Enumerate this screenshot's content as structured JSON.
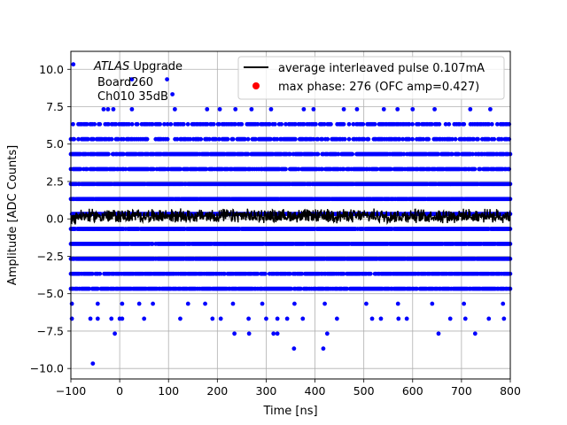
{
  "chart_data": {
    "type": "scatter",
    "title": "",
    "xlabel": "Time [ns]",
    "ylabel": "Amplitude [ADC Counts]",
    "xlim": [
      -100,
      800
    ],
    "ylim": [
      -10.7,
      11.2
    ],
    "grid": true,
    "xticks": [
      -100,
      0,
      100,
      200,
      300,
      400,
      500,
      600,
      700,
      800
    ],
    "yticks": [
      -10.0,
      -7.5,
      -5.0,
      -2.5,
      0.0,
      2.5,
      5.0,
      7.5,
      10.0
    ],
    "xtick_labels": [
      "−100",
      "0",
      "100",
      "200",
      "300",
      "400",
      "500",
      "600",
      "700",
      "800"
    ],
    "ytick_labels": [
      "−10.0",
      "−7.5",
      "−5.0",
      "−2.5",
      "0.0",
      "2.5",
      "5.0",
      "7.5",
      "10.0"
    ],
    "annotation": {
      "line1_italic": "ATLAS",
      "line1_rest": " Upgrade",
      "line2": "Board260",
      "line3": "Ch010 35dB"
    },
    "legend": {
      "placement": "upper-right",
      "entries": [
        {
          "label": "average interleaved pulse 0.107mA",
          "marker": "line",
          "color": "#000000"
        },
        {
          "label": "max phase: 276 (OFC amp=0.427)",
          "marker": "dot",
          "color": "#ff0000"
        }
      ]
    },
    "series": [
      {
        "kind": "scatter",
        "color": "#0000ff",
        "dense_levels": [
          -4.67,
          -3.67,
          -2.67,
          -1.67,
          -0.67,
          0.33,
          1.33,
          2.33,
          3.33,
          4.33,
          5.33,
          6.33
        ],
        "sparse_points": [
          [
            -95,
            10.33
          ],
          [
            25,
            9.33
          ],
          [
            97,
            9.33
          ],
          [
            108,
            8.33
          ],
          [
            -33,
            7.33
          ],
          [
            -24,
            7.33
          ],
          [
            -13,
            7.33
          ],
          [
            25,
            7.33
          ],
          [
            113,
            7.33
          ],
          [
            179,
            7.33
          ],
          [
            205,
            7.33
          ],
          [
            237,
            7.33
          ],
          [
            270,
            7.33
          ],
          [
            310,
            7.33
          ],
          [
            377,
            7.33
          ],
          [
            397,
            7.33
          ],
          [
            459,
            7.33
          ],
          [
            486,
            7.33
          ],
          [
            541,
            7.33
          ],
          [
            569,
            7.33
          ],
          [
            600,
            7.33
          ],
          [
            645,
            7.33
          ],
          [
            718,
            7.33
          ],
          [
            759,
            7.33
          ],
          [
            -98,
            -5.67
          ],
          [
            -45,
            -5.67
          ],
          [
            5,
            -5.67
          ],
          [
            40,
            -5.67
          ],
          [
            68,
            -5.67
          ],
          [
            140,
            -5.67
          ],
          [
            175,
            -5.67
          ],
          [
            232,
            -5.67
          ],
          [
            292,
            -5.67
          ],
          [
            358,
            -5.67
          ],
          [
            420,
            -5.67
          ],
          [
            505,
            -5.67
          ],
          [
            570,
            -5.67
          ],
          [
            640,
            -5.67
          ],
          [
            705,
            -5.67
          ],
          [
            785,
            -5.67
          ],
          [
            -98,
            -6.67
          ],
          [
            -60,
            -6.67
          ],
          [
            -45,
            -6.67
          ],
          [
            -17,
            -6.67
          ],
          [
            0,
            -6.67
          ],
          [
            5,
            -6.67
          ],
          [
            50,
            -6.67
          ],
          [
            124,
            -6.67
          ],
          [
            190,
            -6.67
          ],
          [
            207,
            -6.67
          ],
          [
            264,
            -6.67
          ],
          [
            300,
            -6.67
          ],
          [
            323,
            -6.67
          ],
          [
            343,
            -6.67
          ],
          [
            375,
            -6.67
          ],
          [
            445,
            -6.67
          ],
          [
            517,
            -6.67
          ],
          [
            535,
            -6.67
          ],
          [
            571,
            -6.67
          ],
          [
            588,
            -6.67
          ],
          [
            677,
            -6.67
          ],
          [
            708,
            -6.67
          ],
          [
            756,
            -6.67
          ],
          [
            787,
            -6.67
          ],
          [
            -10,
            -7.67
          ],
          [
            235,
            -7.67
          ],
          [
            265,
            -7.67
          ],
          [
            315,
            -7.67
          ],
          [
            323,
            -7.67
          ],
          [
            425,
            -7.67
          ],
          [
            653,
            -7.67
          ],
          [
            728,
            -7.67
          ],
          [
            357,
            -8.67
          ],
          [
            417,
            -8.67
          ],
          [
            -55,
            -9.67
          ]
        ]
      },
      {
        "kind": "line",
        "name": "average interleaved pulse 0.107mA",
        "color": "#000000",
        "mean": 0.2,
        "noise": 0.38
      }
    ]
  }
}
